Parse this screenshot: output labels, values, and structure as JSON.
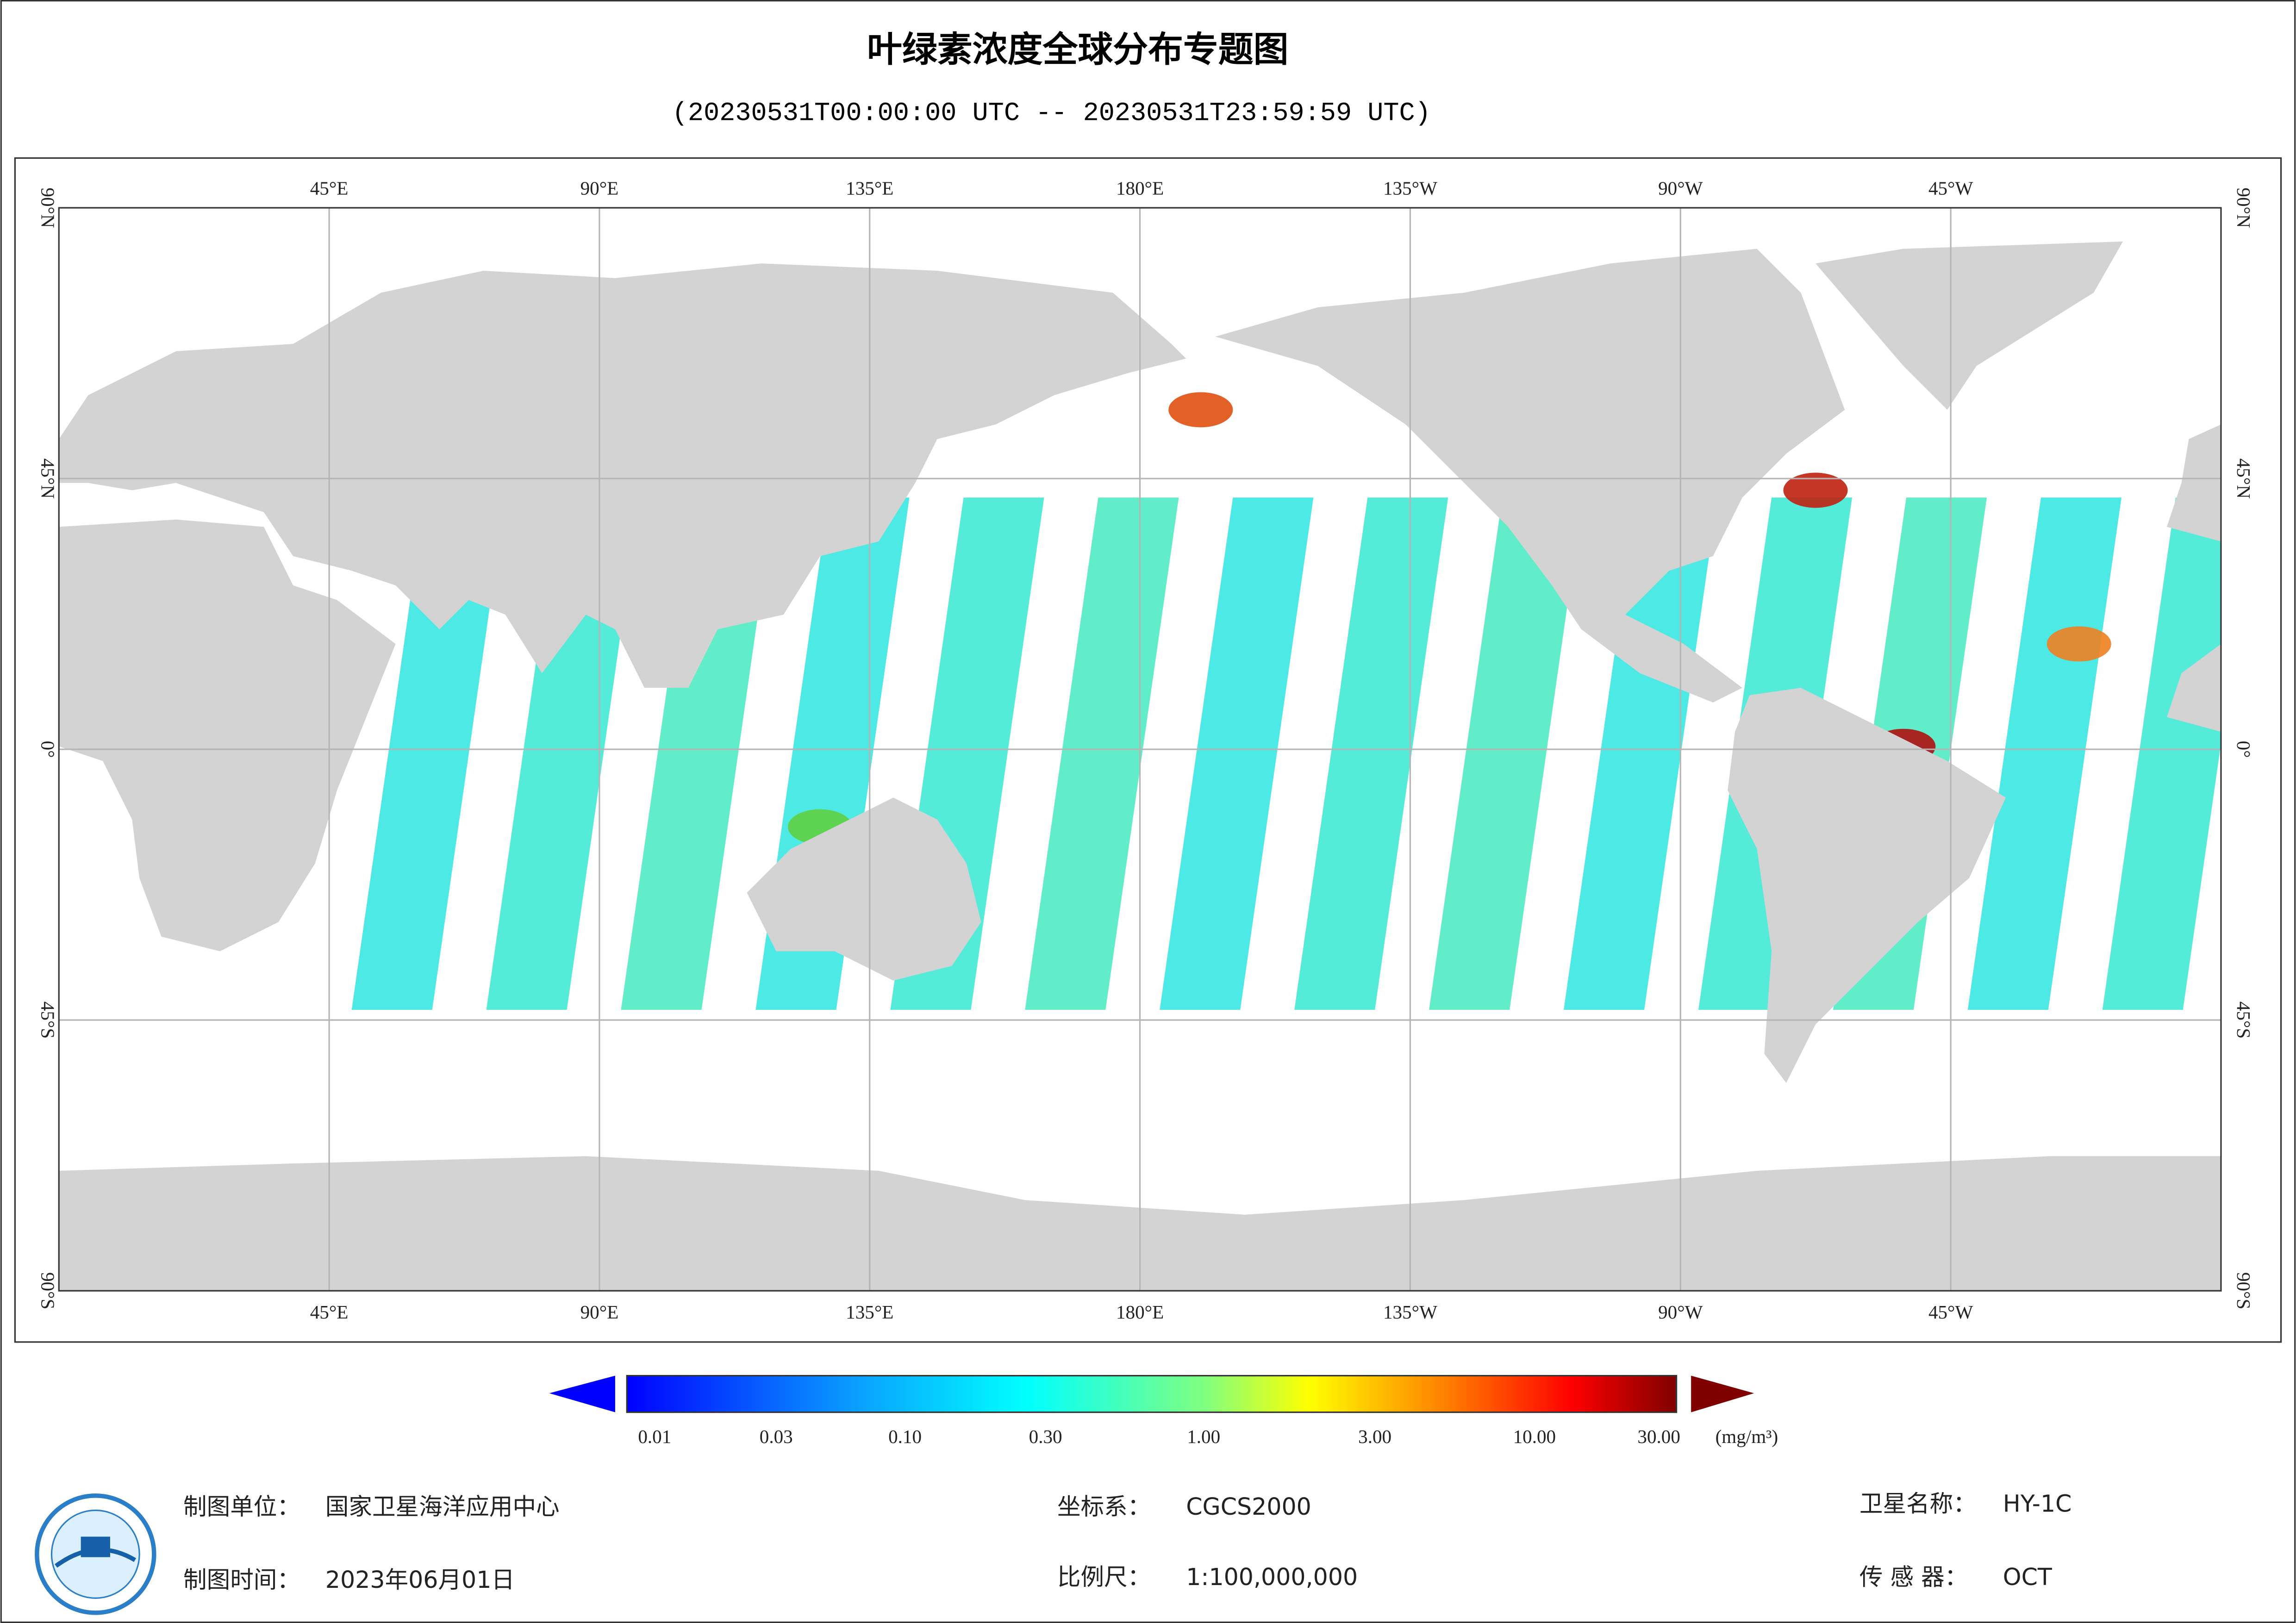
{
  "title": "叶绿素浓度全球分布专题图",
  "subtitle": "(20230531T00:00:00 UTC -- 20230531T23:59:59 UTC)",
  "map": {
    "longitude_labels": [
      "45°E",
      "90°E",
      "135°E",
      "180°E",
      "135°W",
      "90°W",
      "45°W"
    ],
    "latitude_labels": [
      "90°N",
      "45°N",
      "0°",
      "45°S",
      "90°S"
    ]
  },
  "colorbar": {
    "ticks": [
      "0.01",
      "0.03",
      "0.10",
      "0.30",
      "1.00",
      "3.00",
      "10.00",
      "30.00"
    ],
    "unit": "(mg/m³)"
  },
  "footer": {
    "unit_label": "制图单位：",
    "unit": "国家卫星海洋应用中心",
    "time_label": "制图时间：",
    "time": "2023年06月01日",
    "crs_label": "坐标系：",
    "crs": "CGCS2000",
    "scale_label": "比例尺：",
    "scale": "1:100,000,000",
    "satellite_label": "卫星名称：",
    "satellite": "HY-1C",
    "sensor_label": "传 感 器：",
    "sensor": "OCT"
  }
}
